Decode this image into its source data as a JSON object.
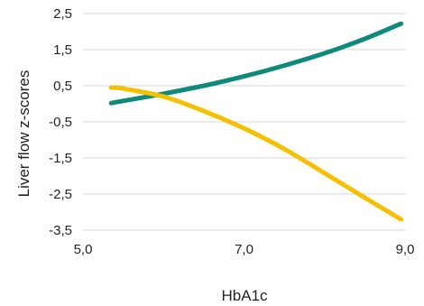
{
  "chart_data": {
    "type": "line",
    "title": "",
    "xlabel": "HbA1c",
    "ylabel": "Liver flow z-scores",
    "xlim": [
      5.0,
      9.0
    ],
    "ylim": [
      -3.5,
      2.5
    ],
    "x_ticks": [
      5.0,
      7.0,
      9.0
    ],
    "x_tick_labels": [
      "5,0",
      "7,0",
      "9,0"
    ],
    "y_ticks": [
      2.5,
      1.5,
      0.5,
      -0.5,
      -1.5,
      -2.5,
      -3.5
    ],
    "y_tick_labels": [
      "2,5",
      "1,5",
      "0,5",
      "-0,5",
      "-1,5",
      "-2,5",
      "-3,5"
    ],
    "grid": "horizontal",
    "legend": "none",
    "series": [
      {
        "color": "#0e8a7a",
        "x": [
          5.35,
          5.5,
          6.0,
          6.5,
          7.0,
          7.5,
          8.0,
          8.5,
          8.95
        ],
        "y": [
          0.02,
          0.08,
          0.28,
          0.5,
          0.76,
          1.06,
          1.4,
          1.8,
          2.22
        ]
      },
      {
        "color": "#f5c000",
        "x": [
          5.35,
          5.5,
          6.0,
          6.5,
          7.0,
          7.5,
          8.0,
          8.5,
          8.95
        ],
        "y": [
          0.45,
          0.42,
          0.2,
          -0.2,
          -0.68,
          -1.25,
          -1.92,
          -2.6,
          -3.2
        ]
      }
    ]
  }
}
